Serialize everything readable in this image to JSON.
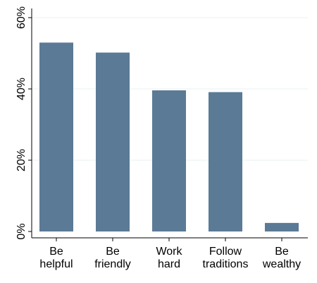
{
  "chart_data": {
    "type": "bar",
    "categories": [
      [
        "Be",
        "helpful"
      ],
      [
        "Be",
        "friendly"
      ],
      [
        "Work",
        "hard"
      ],
      [
        "Follow",
        "traditions"
      ],
      [
        "Be",
        "wealthy"
      ]
    ],
    "values": [
      53,
      50.2,
      39.6,
      39.1,
      2.4
    ],
    "title": "",
    "xlabel": "",
    "ylabel": "",
    "ylim": [
      0,
      60
    ],
    "yticks": [
      0,
      20,
      40,
      60
    ],
    "ytick_labels": [
      "0%",
      "20%",
      "40%",
      "60%"
    ],
    "grid": true,
    "bar_color": "#5b7a96",
    "grid_color": "#eaf2f3"
  }
}
